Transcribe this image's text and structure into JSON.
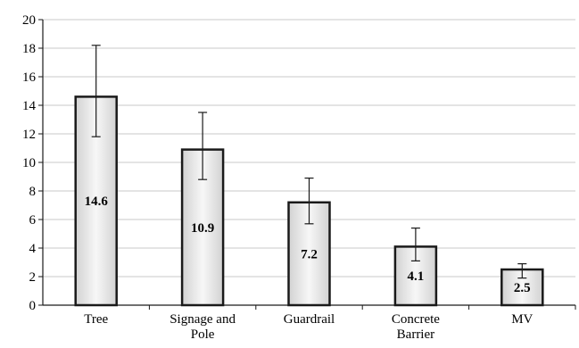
{
  "chart_data": {
    "type": "bar",
    "title": "",
    "xlabel": "",
    "ylabel": "",
    "ylim": [
      0,
      20
    ],
    "yticks": [
      0,
      2,
      4,
      6,
      8,
      10,
      12,
      14,
      16,
      18,
      20
    ],
    "grid": true,
    "categories": [
      [
        "Tree"
      ],
      [
        "Signage and",
        "Pole"
      ],
      [
        "Guardrail"
      ],
      [
        "Concrete",
        "Barrier"
      ],
      [
        "MV"
      ]
    ],
    "values": [
      14.6,
      10.9,
      7.2,
      4.1,
      2.5
    ],
    "value_labels": [
      "14.6",
      "10.9",
      "7.2",
      "4.1",
      "2.5"
    ],
    "error_bars": [
      {
        "low": 11.8,
        "high": 18.2
      },
      {
        "low": 8.8,
        "high": 13.5
      },
      {
        "low": 5.7,
        "high": 8.9
      },
      {
        "low": 3.1,
        "high": 5.4
      },
      {
        "low": 1.9,
        "high": 2.9
      }
    ],
    "colors": {
      "bar_fill_light": "#f7f7f7",
      "bar_fill_dark": "#d2d2d2",
      "bar_stroke": "#1a1a1a",
      "grid": "#c8c8c8",
      "axis": "#1a1a1a"
    }
  }
}
